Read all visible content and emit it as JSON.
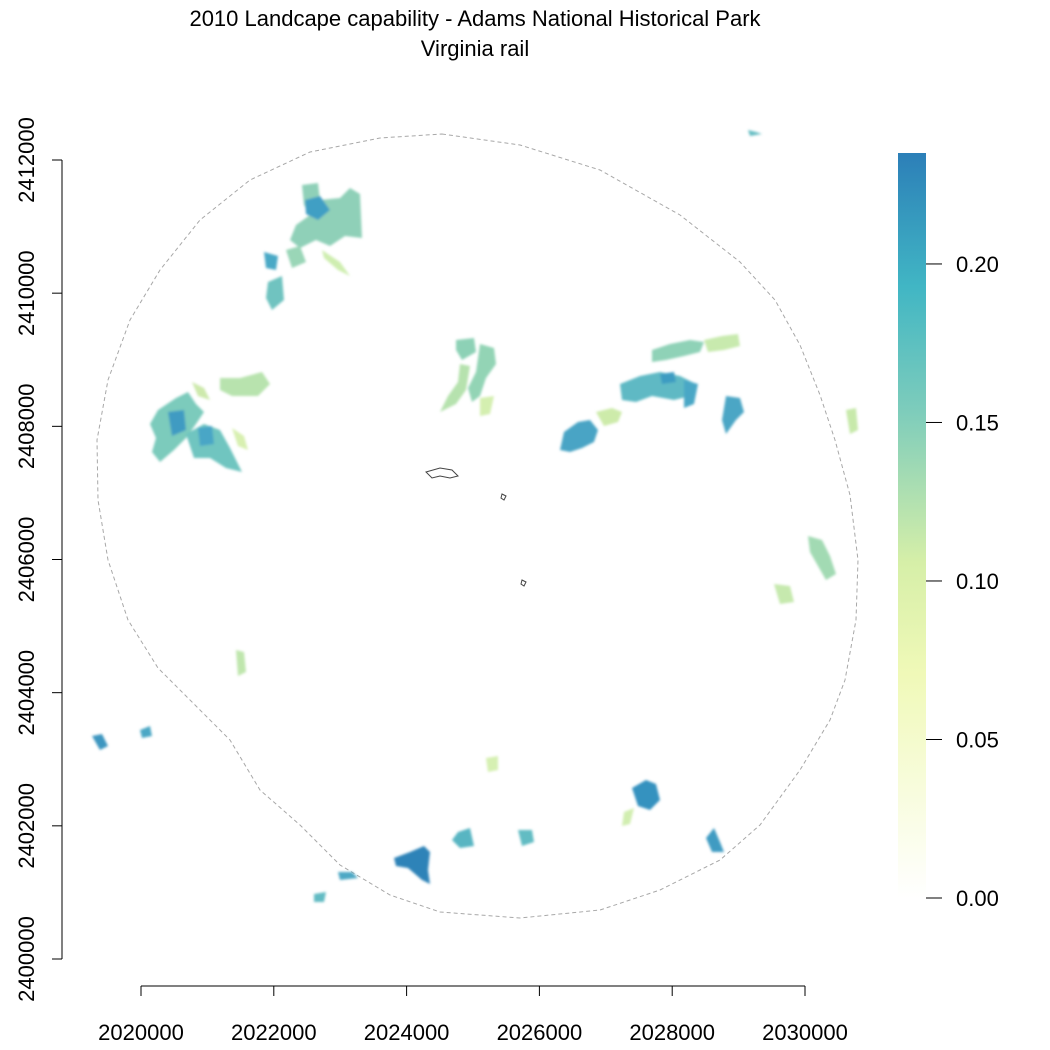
{
  "title": "2010 Landcape capability - Adams National Historical Park",
  "subtitle": "Virginia rail",
  "map": {
    "x_ticks": [
      "2020000",
      "2022000",
      "2024000",
      "2026000",
      "2028000",
      "2030000"
    ],
    "y_ticks": [
      "2400000",
      "2402000",
      "2404000",
      "2406000",
      "2408000",
      "2410000",
      "2412000"
    ],
    "xlim": [
      2020000,
      2030000
    ],
    "ylim": [
      2400000,
      2412000
    ]
  },
  "legend": {
    "ticks": [
      "0.00",
      "0.05",
      "0.10",
      "0.15",
      "0.20"
    ],
    "tick_values": [
      0.0,
      0.05,
      0.1,
      0.15,
      0.2
    ],
    "min": 0.0,
    "max": 0.235,
    "colors": [
      "#ffffff",
      "#eef8b4",
      "#c9e9a4",
      "#7fcdbb",
      "#41b6c4",
      "#2c7fb8"
    ]
  }
}
